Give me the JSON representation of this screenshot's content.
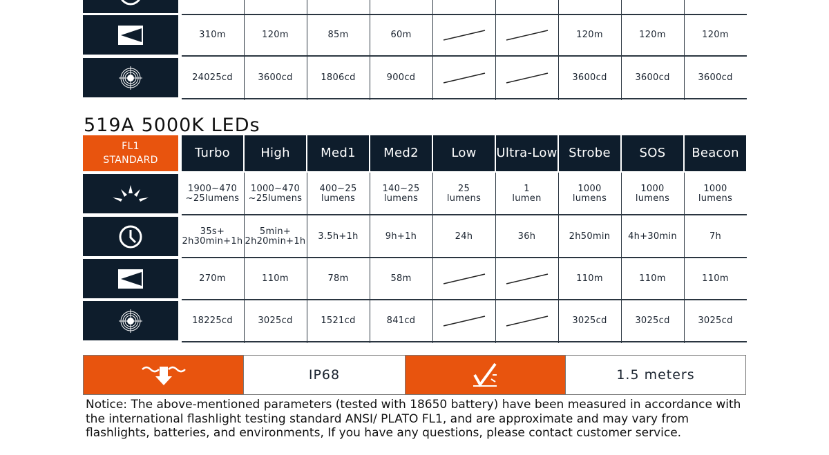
{
  "top_table": {
    "rows": [
      {
        "icon": "clock-icon",
        "cells": [
          "",
          "",
          "",
          "",
          "",
          "",
          "",
          "",
          ""
        ]
      },
      {
        "icon": "beam-distance-icon",
        "cells": [
          "310m",
          "120m",
          "85m",
          "60m",
          "/",
          "/",
          "120m",
          "120m",
          "120m"
        ]
      },
      {
        "icon": "target-intensity-icon",
        "cells": [
          "24025cd",
          "3600cd",
          "1806cd",
          "900cd",
          "/",
          "/",
          "3600cd",
          "3600cd",
          "3600cd"
        ]
      }
    ]
  },
  "section_title": "519A 5000K LEDs",
  "standard": {
    "line1": "FL1",
    "line2": "STANDARD"
  },
  "headers": [
    "Turbo",
    "High",
    "Med1",
    "Med2",
    "Low",
    "Ultra-Low",
    "Strobe",
    "SOS",
    "Beacon"
  ],
  "rows": [
    {
      "icon": "brightness-icon",
      "cells": [
        "1900~470\n~25lumens",
        "1000~470\n~25lumens",
        "400~25\nlumens",
        "140~25\nlumens",
        "25\nlumens",
        "1\nlumen",
        "1000\nlumens",
        "1000\nlumens",
        "1000\nlumens"
      ]
    },
    {
      "icon": "clock-icon",
      "cells": [
        "35s+\n2h30min+1h",
        "5min+\n2h20min+1h",
        "3.5h+1h",
        "9h+1h",
        "24h",
        "36h",
        "2h50min",
        "4h+30min",
        "7h"
      ]
    },
    {
      "icon": "beam-distance-icon",
      "cells": [
        "270m",
        "110m",
        "78m",
        "58m",
        "/",
        "/",
        "110m",
        "110m",
        "110m"
      ]
    },
    {
      "icon": "target-intensity-icon",
      "cells": [
        "18225cd",
        "3025cd",
        "1521cd",
        "841cd",
        "/",
        "/",
        "3025cd",
        "3025cd",
        "3025cd"
      ]
    }
  ],
  "waterproof": {
    "icon": "waterproof-icon",
    "rating": "IP68",
    "impact_icon": "impact-resistance-icon",
    "impact": "1.5 meters"
  },
  "notice": "Notice:  The above-mentioned parameters (tested with 18650 battery)  have been measured in accordance with the international flashlight testing standard ANSI/ PLATO FL1, and are approximate and may vary from flashlights, batteries, and environments,  If you have any questions, please contact customer service.",
  "colors": {
    "navy": "#0e1d2c",
    "orange": "#e8540e"
  }
}
